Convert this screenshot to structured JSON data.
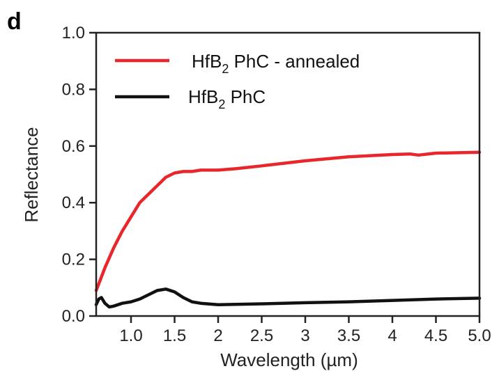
{
  "panel_label": "d",
  "chart_data": {
    "type": "line",
    "xlabel": "Wavelength (µm)",
    "ylabel": "Reflectance",
    "xlim": [
      0.6,
      5.0
    ],
    "ylim": [
      0.0,
      1.0
    ],
    "xticks": [
      1.0,
      1.5,
      2.0,
      2.5,
      3.0,
      3.5,
      4.0,
      4.5,
      5.0
    ],
    "xtick_labels": [
      "1.0",
      "1.5",
      "2",
      "2.5",
      "3",
      "3.5",
      "4",
      "4.5",
      "5.0"
    ],
    "yticks": [
      0.0,
      0.2,
      0.4,
      0.6,
      0.8,
      1.0
    ],
    "ytick_labels": [
      "0.0",
      "0.2",
      "0.4",
      "0.6",
      "0.8",
      "1.0"
    ],
    "grid": false,
    "legend_position": "top-left",
    "series": [
      {
        "name": "HfB2 PhC - annealed",
        "legend_main": "HfB",
        "legend_sub": "2",
        "legend_rest": " PhC - annealed",
        "color": "#e8262b",
        "x": [
          0.6,
          0.65,
          0.7,
          0.8,
          0.9,
          1.0,
          1.1,
          1.2,
          1.3,
          1.4,
          1.5,
          1.6,
          1.7,
          1.8,
          2.0,
          2.2,
          2.5,
          3.0,
          3.5,
          4.0,
          4.2,
          4.3,
          4.5,
          5.0
        ],
        "y": [
          0.09,
          0.13,
          0.17,
          0.24,
          0.3,
          0.35,
          0.4,
          0.43,
          0.46,
          0.49,
          0.505,
          0.51,
          0.51,
          0.515,
          0.515,
          0.52,
          0.53,
          0.548,
          0.562,
          0.57,
          0.572,
          0.568,
          0.575,
          0.578
        ]
      },
      {
        "name": "HfB2 PhC",
        "legend_main": "HfB",
        "legend_sub": "2",
        "legend_rest": " PhC",
        "color": "#111111",
        "x": [
          0.6,
          0.63,
          0.66,
          0.7,
          0.75,
          0.8,
          0.9,
          1.0,
          1.1,
          1.2,
          1.3,
          1.4,
          1.5,
          1.6,
          1.7,
          1.8,
          2.0,
          2.5,
          3.0,
          3.5,
          4.0,
          4.5,
          5.0
        ],
        "y": [
          0.04,
          0.06,
          0.065,
          0.045,
          0.032,
          0.035,
          0.045,
          0.05,
          0.06,
          0.075,
          0.09,
          0.095,
          0.085,
          0.065,
          0.05,
          0.045,
          0.04,
          0.043,
          0.047,
          0.05,
          0.055,
          0.06,
          0.063
        ]
      }
    ]
  }
}
